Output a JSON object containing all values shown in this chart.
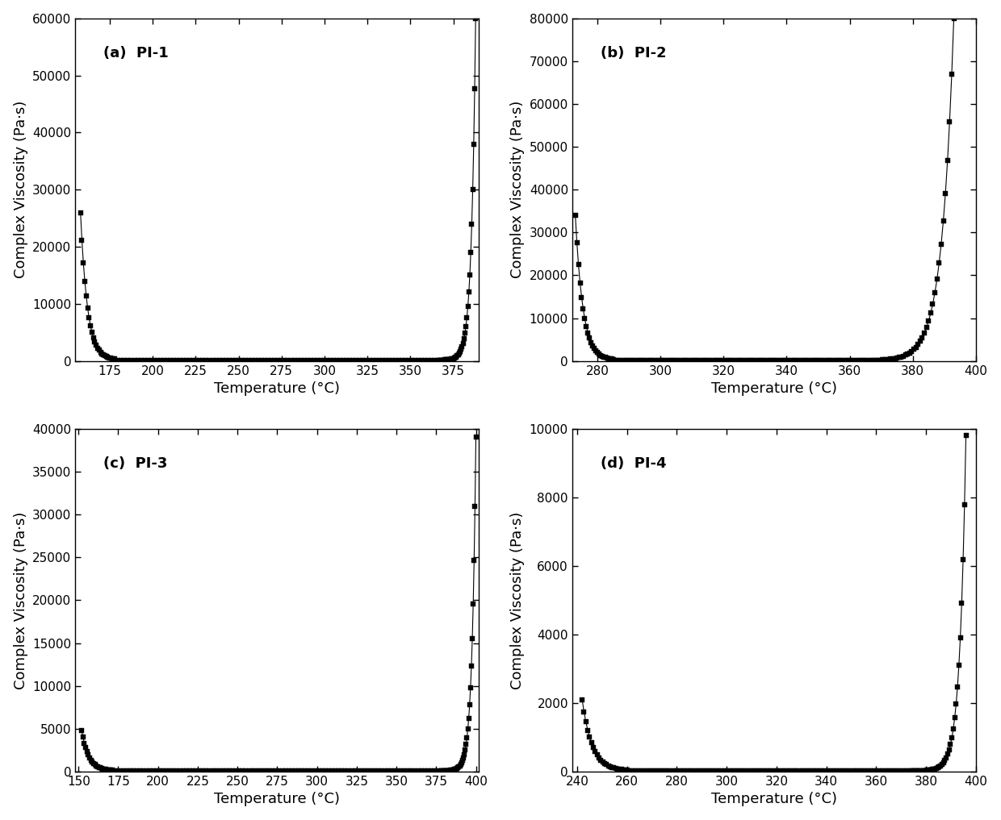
{
  "panels": [
    {
      "label": "(a)  PI-1",
      "xlim": [
        155,
        390
      ],
      "ylim": [
        0,
        60000
      ],
      "xticks": [
        175,
        200,
        225,
        250,
        275,
        300,
        325,
        350,
        375
      ],
      "yticks": [
        0,
        10000,
        20000,
        30000,
        40000,
        50000,
        60000
      ],
      "x_start": 158,
      "x_min_start": 178,
      "x_plateau_end": 366,
      "x_end": 388,
      "init_viscosity": 26000,
      "min_viscosity": 150,
      "rise_viscosity": 60000,
      "drop_steepness": 5.0,
      "rise_steepness": 9.0
    },
    {
      "label": "(b)  PI-2",
      "xlim": [
        272,
        400
      ],
      "ylim": [
        0,
        80000
      ],
      "xticks": [
        280,
        300,
        320,
        340,
        360,
        380,
        400
      ],
      "yticks": [
        0,
        10000,
        20000,
        30000,
        40000,
        50000,
        60000,
        70000,
        80000
      ],
      "x_start": 273,
      "x_min_start": 285,
      "x_plateau_end": 367,
      "x_end": 393,
      "init_viscosity": 34000,
      "min_viscosity": 150,
      "rise_viscosity": 80000,
      "drop_steepness": 5.0,
      "rise_steepness": 7.0
    },
    {
      "label": "(c)  PI-3",
      "xlim": [
        148,
        402
      ],
      "ylim": [
        0,
        40000
      ],
      "xticks": [
        150,
        175,
        200,
        225,
        250,
        275,
        300,
        325,
        350,
        375,
        400
      ],
      "yticks": [
        0,
        5000,
        10000,
        15000,
        20000,
        25000,
        30000,
        35000,
        40000
      ],
      "x_start": 152,
      "x_min_start": 172,
      "x_plateau_end": 378,
      "x_end": 400,
      "init_viscosity": 4800,
      "min_viscosity": 80,
      "rise_viscosity": 39000,
      "drop_steepness": 4.5,
      "rise_steepness": 9.0
    },
    {
      "label": "(d)  PI-4",
      "xlim": [
        238,
        400
      ],
      "ylim": [
        0,
        10000
      ],
      "xticks": [
        240,
        260,
        280,
        300,
        320,
        340,
        360,
        380,
        400
      ],
      "yticks": [
        0,
        2000,
        4000,
        6000,
        8000,
        10000
      ],
      "x_start": 242,
      "x_min_start": 260,
      "x_plateau_end": 374,
      "x_end": 396,
      "init_viscosity": 2100,
      "min_viscosity": 20,
      "rise_viscosity": 9800,
      "drop_steepness": 4.5,
      "rise_steepness": 9.0
    }
  ],
  "xlabel": "Temperature (°C)",
  "ylabel": "Complex Viscosity (Pa·s)",
  "marker": "s",
  "marker_size": 4,
  "color": "black",
  "linewidth": 0.8
}
